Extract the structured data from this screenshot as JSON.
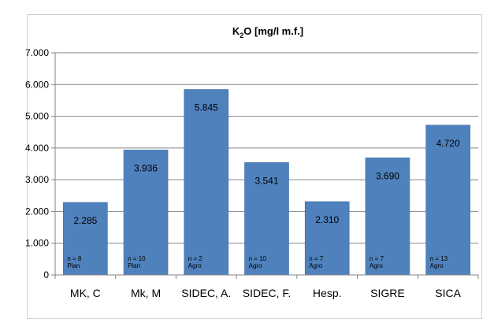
{
  "chart_data": {
    "type": "bar",
    "title_main": "K",
    "title_sub": "2",
    "title_rest": "O [mg/l m.f.]",
    "categories": [
      "MK, C",
      "Mk, M",
      "SIDEC, A.",
      "SIDEC, F.",
      "Hesp.",
      "SIGRE",
      "SICA"
    ],
    "values": [
      2285,
      3936,
      5845,
      3541,
      2310,
      3690,
      4720
    ],
    "value_labels": [
      "2.285",
      "3.936",
      "5.845",
      "3.541",
      "2.310",
      "3.690",
      "4.720"
    ],
    "notes_n": [
      "n = 8",
      "n = 10",
      "n = 2",
      "n = 10",
      "n = 7",
      "n = 7",
      "n = 13"
    ],
    "notes_type": [
      "Plan",
      "Plan",
      "Agro",
      "Agro",
      "Agro",
      "Agro",
      "Agro"
    ],
    "ylim": [
      0,
      7000
    ],
    "yticks": [
      0,
      1000,
      2000,
      3000,
      4000,
      5000,
      6000,
      7000
    ],
    "ytick_labels": [
      "0",
      "1.000",
      "2.000",
      "3.000",
      "4.000",
      "5.000",
      "6.000",
      "7.000"
    ],
    "grid": true,
    "bar_color": "#4f81bd",
    "bar_edge": "#3d6da8",
    "grid_color": "#868686"
  }
}
